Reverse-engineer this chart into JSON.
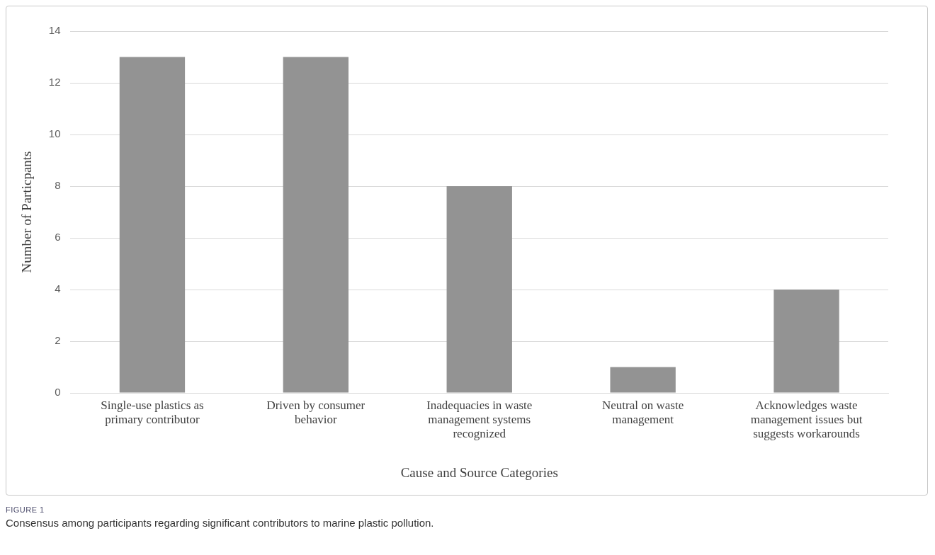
{
  "chart_data": {
    "type": "bar",
    "xlabel": "Cause and Source Categories",
    "ylabel": "Number of Particpants",
    "categories": [
      "Single-use plastics as primary contributor",
      "Driven by consumer behavior",
      "Inadequacies in waste management systems recognized",
      "Neutral on waste management",
      "Acknowledges waste management issues but suggests workarounds"
    ],
    "values": [
      13,
      13,
      8,
      1,
      4
    ],
    "color": "#939393",
    "ylim": [
      0,
      14
    ],
    "yticks": [
      0,
      2,
      4,
      6,
      8,
      10,
      12,
      14
    ],
    "grid": "y",
    "legend": false,
    "annotations": [
      "FIGURE 1",
      "Consensus among participants regarding significant contributors to marine plastic pollution."
    ]
  }
}
